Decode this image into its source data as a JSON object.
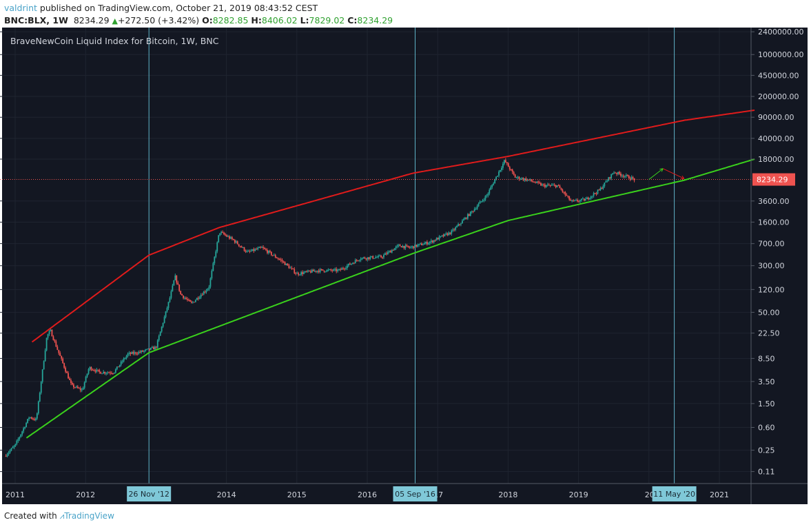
{
  "header": {
    "user": "valdrint",
    "published": " published on TradingView.com, October 21, 2019 08:43:52 CEST",
    "symbol": "BNC:BLX, 1W",
    "last": "8234.29",
    "change": "+272.50 (+3.42%)",
    "o_label": "O:",
    "o": "8282.85",
    "h_label": "H:",
    "h": "8406.02",
    "l_label": "L:",
    "l": "7829.02",
    "c_label": "C:",
    "c": "8234.29"
  },
  "footer": {
    "created": "Created with",
    "brand": "TradingView"
  },
  "chart_data": {
    "type": "candlestick",
    "title": "BraveNewCoin Liquid Index for Bitcoin, 1W, BNC",
    "y_scale": "log",
    "y_ticks": [
      "2400000.00",
      "1000000.00",
      "450000.00",
      "200000.00",
      "90000.00",
      "40000.00",
      "18000.00",
      "3600.00",
      "1600.00",
      "700.00",
      "300.00",
      "120.00",
      "50.00",
      "22.50",
      "8.50",
      "3.50",
      "1.50",
      "0.60",
      "0.25",
      "0.11"
    ],
    "x_ticks": [
      "2011",
      "2012",
      "2014",
      "2015",
      "2016",
      "17",
      "2018",
      "2019",
      "20",
      "2021"
    ],
    "x_tick_years": [
      2011,
      2012,
      2014,
      2015,
      2016,
      2017,
      2018,
      2019,
      2020,
      2021
    ],
    "last_price": {
      "value": 8234.29,
      "label": "8234.29",
      "color": "#ef5350"
    },
    "vertical_markers": [
      {
        "year": 2012.9,
        "label": "26 Nov '12"
      },
      {
        "year": 2016.68,
        "label": "05 Sep '16"
      },
      {
        "year": 2020.36,
        "label": "11 May '20"
      }
    ],
    "price_path": [
      [
        2010.85,
        0.2
      ],
      [
        2011.0,
        0.3
      ],
      [
        2011.2,
        0.9
      ],
      [
        2011.3,
        0.8
      ],
      [
        2011.45,
        20
      ],
      [
        2011.5,
        25
      ],
      [
        2011.6,
        12
      ],
      [
        2011.8,
        3
      ],
      [
        2011.95,
        2.5
      ],
      [
        2012.05,
        6
      ],
      [
        2012.2,
        5
      ],
      [
        2012.4,
        5
      ],
      [
        2012.6,
        10
      ],
      [
        2012.8,
        11
      ],
      [
        2013.0,
        13
      ],
      [
        2013.2,
        90
      ],
      [
        2013.27,
        200
      ],
      [
        2013.35,
        100
      ],
      [
        2013.5,
        70
      ],
      [
        2013.75,
        130
      ],
      [
        2013.9,
        1100
      ],
      [
        2014.1,
        800
      ],
      [
        2014.3,
        500
      ],
      [
        2014.5,
        600
      ],
      [
        2014.8,
        350
      ],
      [
        2015.0,
        220
      ],
      [
        2015.3,
        250
      ],
      [
        2015.6,
        250
      ],
      [
        2015.9,
        400
      ],
      [
        2016.2,
        420
      ],
      [
        2016.45,
        650
      ],
      [
        2016.6,
        600
      ],
      [
        2016.9,
        750
      ],
      [
        2017.2,
        1100
      ],
      [
        2017.5,
        2500
      ],
      [
        2017.7,
        4500
      ],
      [
        2017.95,
        17000
      ],
      [
        2018.1,
        9000
      ],
      [
        2018.3,
        8000
      ],
      [
        2018.5,
        6500
      ],
      [
        2018.7,
        6500
      ],
      [
        2018.9,
        3500
      ],
      [
        2019.1,
        3800
      ],
      [
        2019.3,
        5500
      ],
      [
        2019.5,
        11000
      ],
      [
        2019.6,
        10000
      ],
      [
        2019.8,
        8234.29
      ]
    ],
    "upper_curve": {
      "color": "#e01b1b",
      "points": [
        [
          2011.24,
          16
        ],
        [
          2012.9,
          450
        ],
        [
          2013.9,
          1300
        ],
        [
          2016.65,
          10500
        ],
        [
          2018.0,
          20000
        ],
        [
          2020.5,
          80000
        ],
        [
          2021.5,
          118000
        ]
      ]
    },
    "lower_curve": {
      "color": "#3ad11c",
      "points": [
        [
          2011.16,
          0.4
        ],
        [
          2012.9,
          10.6
        ],
        [
          2016.65,
          480
        ],
        [
          2018.0,
          1700
        ],
        [
          2020.5,
          8000
        ],
        [
          2021.5,
          18000
        ]
      ]
    },
    "arrows": [
      {
        "color": "#3ad11c",
        "from": [
          2020.0,
          8234.29
        ],
        "to": [
          2020.2,
          12500
        ]
      },
      {
        "color": "#e01b1b",
        "from": [
          2020.2,
          12500
        ],
        "to": [
          2020.5,
          8500
        ]
      }
    ],
    "colors": {
      "up": "#26a69a",
      "down": "#ef5350",
      "background": "#131722",
      "marker": "#5fb3c8"
    }
  }
}
